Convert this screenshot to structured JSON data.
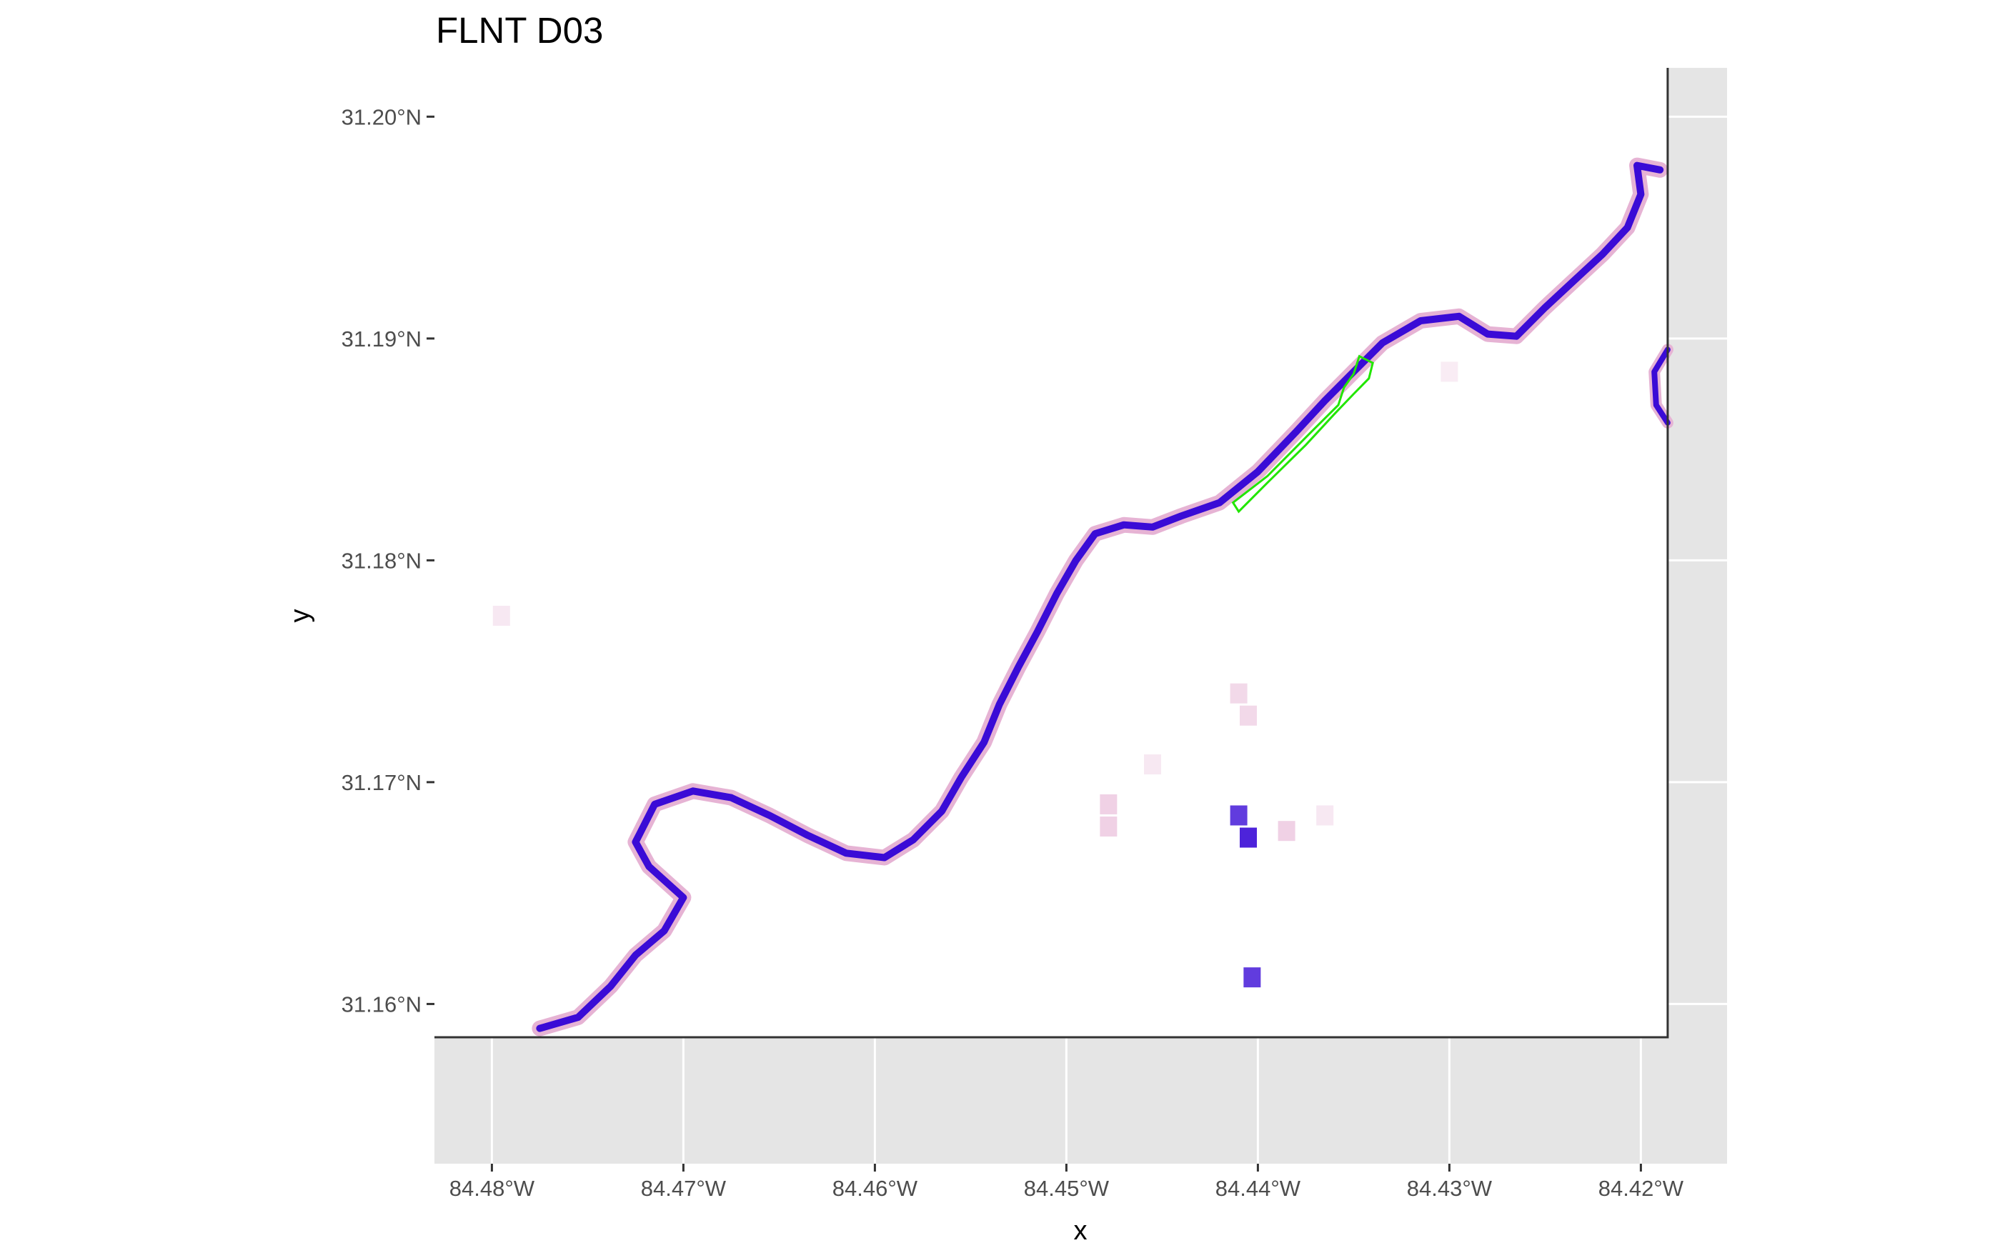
{
  "title": "FLNT D03",
  "axes": {
    "x": {
      "label": "x",
      "ticks": [
        {
          "value": -84.48,
          "label": "84.48°W"
        },
        {
          "value": -84.47,
          "label": "84.47°W"
        },
        {
          "value": -84.46,
          "label": "84.46°W"
        },
        {
          "value": -84.45,
          "label": "84.45°W"
        },
        {
          "value": -84.44,
          "label": "84.44°W"
        },
        {
          "value": -84.43,
          "label": "84.43°W"
        },
        {
          "value": -84.42,
          "label": "84.42°W"
        }
      ],
      "range": [
        -84.483,
        -84.4155
      ]
    },
    "y": {
      "label": "y",
      "ticks": [
        {
          "value": 31.16,
          "label": "31.16°N"
        },
        {
          "value": 31.17,
          "label": "31.17°N"
        },
        {
          "value": 31.18,
          "label": "31.18°N"
        },
        {
          "value": 31.19,
          "label": "31.19°N"
        },
        {
          "value": 31.2,
          "label": "31.20°N"
        }
      ],
      "range": [
        31.1528,
        31.2022
      ]
    }
  },
  "colors": {
    "panel_background": "#e5e5e5",
    "grid": "#ffffff",
    "raster_background": "#ffffff",
    "river_high": "#3a0bd6",
    "river_low": "#e6b3d4",
    "polygon_outline": "#22e600",
    "extent_border": "#333333"
  },
  "raster_extent": {
    "lon": [
      -84.483,
      -84.4186
    ],
    "lat": [
      31.1585,
      31.2022
    ]
  },
  "river_centerline": [
    [
      -84.4775,
      31.1589
    ],
    [
      -84.4755,
      31.1594
    ],
    [
      -84.4738,
      31.1608
    ],
    [
      -84.4725,
      31.1622
    ],
    [
      -84.471,
      31.1633
    ],
    [
      -84.47,
      31.1648
    ],
    [
      -84.4718,
      31.1662
    ],
    [
      -84.4725,
      31.1673
    ],
    [
      -84.4715,
      31.169
    ],
    [
      -84.4695,
      31.1696
    ],
    [
      -84.4675,
      31.1693
    ],
    [
      -84.4655,
      31.1685
    ],
    [
      -84.4635,
      31.1676
    ],
    [
      -84.4615,
      31.1668
    ],
    [
      -84.4595,
      31.1666
    ],
    [
      -84.458,
      31.1674
    ],
    [
      -84.4565,
      31.1687
    ],
    [
      -84.4555,
      31.1702
    ],
    [
      -84.4543,
      31.1718
    ],
    [
      -84.4535,
      31.1735
    ],
    [
      -84.4525,
      31.1752
    ],
    [
      -84.4515,
      31.1768
    ],
    [
      -84.4505,
      31.1785
    ],
    [
      -84.4495,
      31.18
    ],
    [
      -84.4485,
      31.1812
    ],
    [
      -84.447,
      31.1816
    ],
    [
      -84.4455,
      31.1815
    ],
    [
      -84.444,
      31.182
    ],
    [
      -84.442,
      31.1826
    ],
    [
      -84.44,
      31.184
    ],
    [
      -84.438,
      31.1858
    ],
    [
      -84.4365,
      31.1872
    ],
    [
      -84.435,
      31.1885
    ],
    [
      -84.4335,
      31.1898
    ],
    [
      -84.4315,
      31.1908
    ],
    [
      -84.4295,
      31.191
    ],
    [
      -84.428,
      31.1902
    ],
    [
      -84.4265,
      31.1901
    ],
    [
      -84.425,
      31.1914
    ],
    [
      -84.4235,
      31.1926
    ],
    [
      -84.422,
      31.1938
    ],
    [
      -84.4207,
      31.195
    ],
    [
      -84.42,
      31.1965
    ],
    [
      -84.4202,
      31.1978
    ],
    [
      -84.419,
      31.1976
    ]
  ],
  "side_channel": [
    [
      -84.4186,
      31.1895
    ],
    [
      -84.4193,
      31.1885
    ],
    [
      -84.4192,
      31.187
    ],
    [
      -84.4186,
      31.1862
    ]
  ],
  "scattered_patches": [
    [
      -84.4478,
      31.169,
      0.6
    ],
    [
      -84.4478,
      31.168,
      0.6
    ],
    [
      -84.441,
      31.174,
      0.5
    ],
    [
      -84.4405,
      31.173,
      0.5
    ],
    [
      -84.441,
      31.1685,
      0.8
    ],
    [
      -84.4405,
      31.1675,
      0.9
    ],
    [
      -84.4385,
      31.1678,
      0.6
    ],
    [
      -84.4403,
      31.1612,
      0.8
    ],
    [
      -84.4455,
      31.1708,
      0.3
    ],
    [
      -84.4795,
      31.1775,
      0.3
    ],
    [
      -84.4365,
      31.1685,
      0.3
    ],
    [
      -84.43,
      31.1885,
      0.2
    ]
  ],
  "polygon": [
    [
      -84.4413,
      31.1826
    ],
    [
      -84.4395,
      31.1838
    ],
    [
      -84.4372,
      31.1858
    ],
    [
      -84.4358,
      31.187
    ],
    [
      -84.4355,
      31.1878
    ],
    [
      -84.435,
      31.1884
    ],
    [
      -84.4347,
      31.1892
    ],
    [
      -84.434,
      31.1889
    ],
    [
      -84.4342,
      31.1882
    ],
    [
      -84.435,
      31.1875
    ],
    [
      -84.436,
      31.1866
    ],
    [
      -84.4375,
      31.1852
    ],
    [
      -84.4395,
      31.1835
    ],
    [
      -84.441,
      31.1822
    ]
  ]
}
